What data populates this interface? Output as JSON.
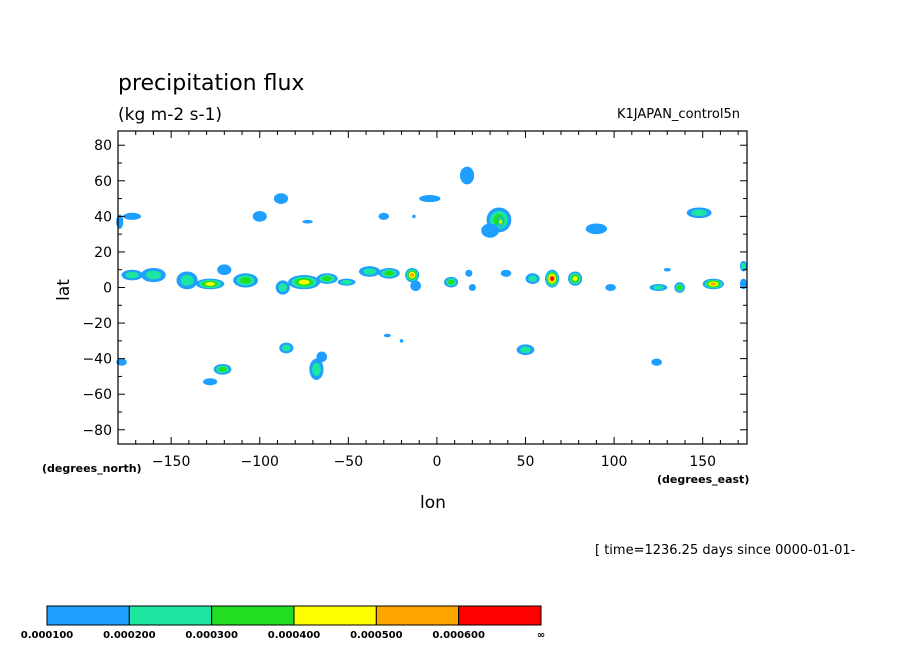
{
  "chart_data": {
    "type": "heatmap",
    "title": "precipitation flux",
    "subtitle": "(kg m-2 s-1)",
    "dataset": "K1JAPAN_control5n",
    "xlabel": "lon",
    "ylabel": "lat",
    "x_units": "(degrees_east)",
    "y_units": "(degrees_north)",
    "time_note": "[ time=1236.25 days since 0000-01-01-",
    "xlim": [
      -180,
      175
    ],
    "ylim": [
      -88,
      88
    ],
    "x_ticks": [
      -150,
      -100,
      -50,
      0,
      50,
      100,
      150
    ],
    "x_tick_labels": [
      "−150",
      "−100",
      "−50",
      "0",
      "50",
      "100",
      "150"
    ],
    "y_ticks": [
      80,
      60,
      40,
      20,
      0,
      -20,
      -40,
      -60,
      -80
    ],
    "y_tick_labels": [
      "80",
      "60",
      "40",
      "20",
      "0",
      "−20",
      "−40",
      "−60",
      "−80"
    ],
    "colorbar": {
      "levels": [
        "0.000100",
        "0.000200",
        "0.000300",
        "0.000400",
        "0.000500",
        "0.000600",
        "∞"
      ],
      "colors": [
        "#1f9fff",
        "#1de6a0",
        "#22dd22",
        "#ffff00",
        "#ffa500",
        "#ff0000"
      ]
    },
    "cells": [
      {
        "lon": -179,
        "lat": 37,
        "rx": 2,
        "ry": 4,
        "level": 1
      },
      {
        "lon": -172,
        "lat": 40,
        "rx": 5,
        "ry": 2,
        "level": 1
      },
      {
        "lon": -172,
        "lat": 7,
        "rx": 6,
        "ry": 3,
        "level": 2
      },
      {
        "lon": -160,
        "lat": 7,
        "rx": 7,
        "ry": 4,
        "level": 2
      },
      {
        "lon": -141,
        "lat": 4,
        "rx": 6,
        "ry": 5,
        "level": 2
      },
      {
        "lon": -128,
        "lat": 2,
        "rx": 8,
        "ry": 3,
        "level": 4
      },
      {
        "lon": -120,
        "lat": 10,
        "rx": 4,
        "ry": 3,
        "level": 1
      },
      {
        "lon": -108,
        "lat": 4,
        "rx": 7,
        "ry": 4,
        "level": 3
      },
      {
        "lon": -87,
        "lat": 0,
        "rx": 4,
        "ry": 4,
        "level": 2
      },
      {
        "lon": -75,
        "lat": 3,
        "rx": 9,
        "ry": 4,
        "level": 4
      },
      {
        "lon": -62,
        "lat": 5,
        "rx": 6,
        "ry": 3,
        "level": 3
      },
      {
        "lon": -51,
        "lat": 3,
        "rx": 5,
        "ry": 2,
        "level": 2
      },
      {
        "lon": -38,
        "lat": 9,
        "rx": 6,
        "ry": 3,
        "level": 2
      },
      {
        "lon": -27,
        "lat": 8,
        "rx": 6,
        "ry": 3,
        "level": 3
      },
      {
        "lon": -14,
        "lat": 7,
        "rx": 4,
        "ry": 4,
        "level": 5
      },
      {
        "lon": -12,
        "lat": 1,
        "rx": 3,
        "ry": 3,
        "level": 1
      },
      {
        "lon": 8,
        "lat": 3,
        "rx": 4,
        "ry": 3,
        "level": 3
      },
      {
        "lon": 18,
        "lat": 8,
        "rx": 2,
        "ry": 2,
        "level": 1
      },
      {
        "lon": 20,
        "lat": 0,
        "rx": 2,
        "ry": 2,
        "level": 1
      },
      {
        "lon": 39,
        "lat": 8,
        "rx": 3,
        "ry": 2,
        "level": 1
      },
      {
        "lon": 54,
        "lat": 5,
        "rx": 4,
        "ry": 3,
        "level": 2
      },
      {
        "lon": 65,
        "lat": 5,
        "rx": 4,
        "ry": 5,
        "level": 6
      },
      {
        "lon": 78,
        "lat": 5,
        "rx": 4,
        "ry": 4,
        "level": 4
      },
      {
        "lon": 98,
        "lat": 0,
        "rx": 3,
        "ry": 2,
        "level": 1
      },
      {
        "lon": 125,
        "lat": 0,
        "rx": 5,
        "ry": 2,
        "level": 2
      },
      {
        "lon": 137,
        "lat": 0,
        "rx": 3,
        "ry": 3,
        "level": 3
      },
      {
        "lon": 156,
        "lat": 2,
        "rx": 6,
        "ry": 3,
        "level": 5
      },
      {
        "lon": 173,
        "lat": 12,
        "rx": 2,
        "ry": 3,
        "level": 2
      },
      {
        "lon": 173,
        "lat": 2,
        "rx": 2,
        "ry": 3,
        "level": 1
      },
      {
        "lon": -88,
        "lat": 50,
        "rx": 4,
        "ry": 3,
        "level": 1
      },
      {
        "lon": -100,
        "lat": 40,
        "rx": 4,
        "ry": 3,
        "level": 1
      },
      {
        "lon": -73,
        "lat": 37,
        "rx": 3,
        "ry": 1,
        "level": 1
      },
      {
        "lon": -30,
        "lat": 40,
        "rx": 3,
        "ry": 2,
        "level": 1
      },
      {
        "lon": -13,
        "lat": 40,
        "rx": 1,
        "ry": 1,
        "level": 1
      },
      {
        "lon": -4,
        "lat": 50,
        "rx": 6,
        "ry": 2,
        "level": 1
      },
      {
        "lon": 17,
        "lat": 63,
        "rx": 4,
        "ry": 5,
        "level": 1
      },
      {
        "lon": 35,
        "lat": 38,
        "rx": 7,
        "ry": 7,
        "level": 3
      },
      {
        "lon": 36,
        "lat": 37,
        "rx": 2,
        "ry": 3,
        "level": 4
      },
      {
        "lon": 30,
        "lat": 32,
        "rx": 5,
        "ry": 4,
        "level": 1
      },
      {
        "lon": 90,
        "lat": 33,
        "rx": 6,
        "ry": 3,
        "level": 1
      },
      {
        "lon": 148,
        "lat": 42,
        "rx": 7,
        "ry": 3,
        "level": 2
      },
      {
        "lon": 130,
        "lat": 10,
        "rx": 2,
        "ry": 1,
        "level": 1
      },
      {
        "lon": -178,
        "lat": -42,
        "rx": 3,
        "ry": 2,
        "level": 1
      },
      {
        "lon": -85,
        "lat": -34,
        "rx": 4,
        "ry": 3,
        "level": 2
      },
      {
        "lon": -121,
        "lat": -46,
        "rx": 5,
        "ry": 3,
        "level": 3
      },
      {
        "lon": -128,
        "lat": -53,
        "rx": 4,
        "ry": 2,
        "level": 1
      },
      {
        "lon": -68,
        "lat": -46,
        "rx": 4,
        "ry": 6,
        "level": 2
      },
      {
        "lon": -65,
        "lat": -39,
        "rx": 3,
        "ry": 3,
        "level": 1
      },
      {
        "lon": -28,
        "lat": -27,
        "rx": 2,
        "ry": 1,
        "level": 1
      },
      {
        "lon": -20,
        "lat": -30,
        "rx": 1,
        "ry": 1,
        "level": 1
      },
      {
        "lon": 50,
        "lat": -35,
        "rx": 5,
        "ry": 3,
        "level": 2
      },
      {
        "lon": 124,
        "lat": -42,
        "rx": 3,
        "ry": 2,
        "level": 1
      }
    ]
  }
}
